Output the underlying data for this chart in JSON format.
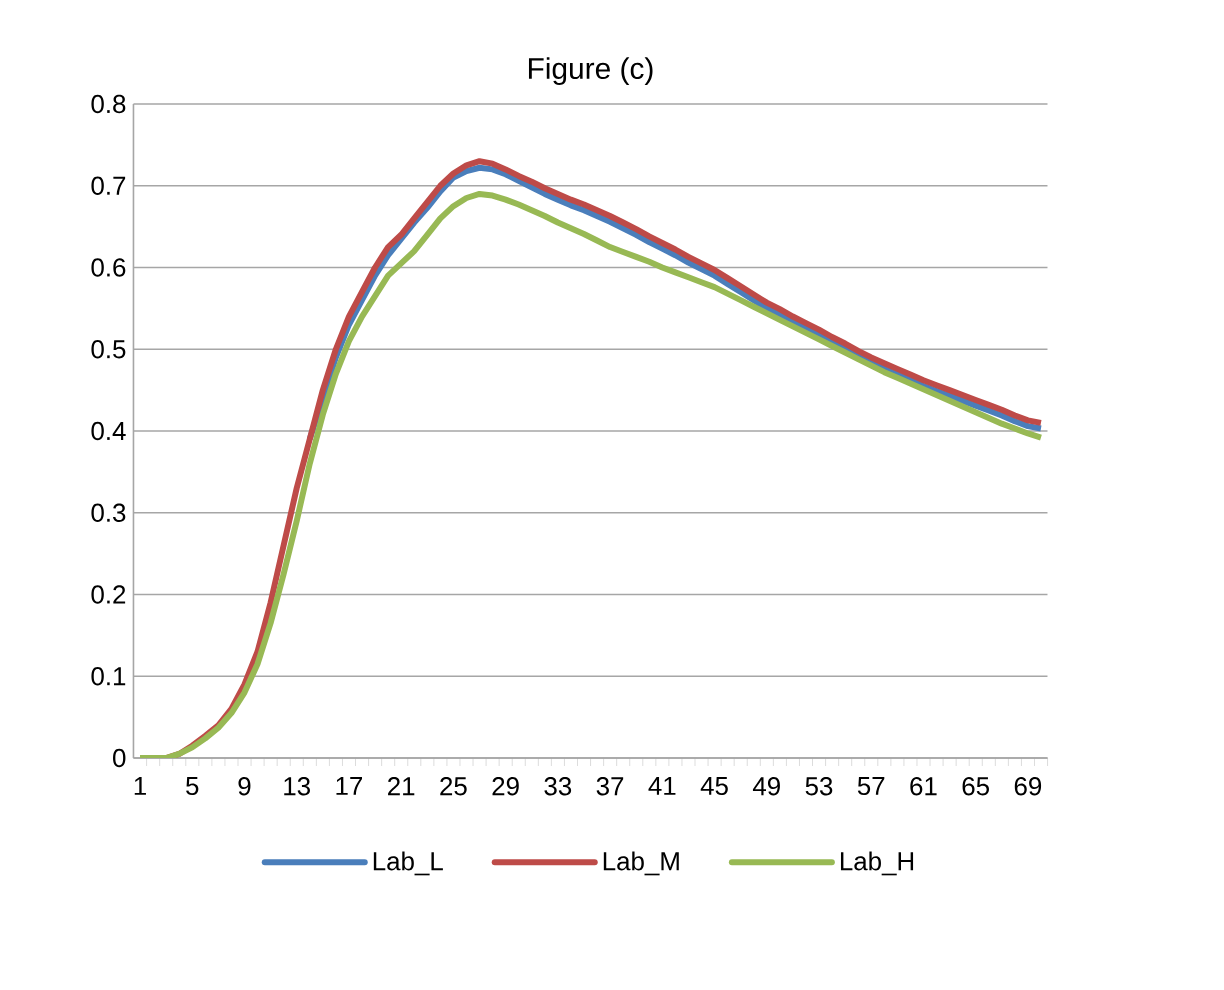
{
  "chart_data": {
    "type": "line",
    "title": "Figure (c)",
    "categories": [
      "1",
      null,
      null,
      null,
      "5",
      null,
      null,
      null,
      "9",
      null,
      null,
      null,
      "13",
      null,
      null,
      null,
      "17",
      null,
      null,
      null,
      "21",
      null,
      null,
      null,
      "25",
      null,
      null,
      null,
      "29",
      null,
      null,
      null,
      "33",
      null,
      null,
      null,
      "37",
      null,
      null,
      null,
      "41",
      null,
      null,
      null,
      "45",
      null,
      null,
      null,
      "49",
      null,
      null,
      null,
      "53",
      null,
      null,
      null,
      "57",
      null,
      null,
      null,
      "61",
      null,
      null,
      null,
      "65",
      null,
      null,
      null,
      "69",
      null
    ],
    "series": [
      {
        "name": "Lab_L",
        "color": "#4a7ebb",
        "values": [
          null,
          null,
          null,
          null,
          null,
          null,
          null,
          null,
          null,
          null,
          null,
          null,
          null,
          0.39,
          0.44,
          0.49,
          0.53,
          0.56,
          0.59,
          0.615,
          0.635,
          0.655,
          0.673,
          0.693,
          0.71,
          0.718,
          0.722,
          0.72,
          0.714,
          0.706,
          0.698,
          0.69,
          0.683,
          0.676,
          0.67,
          0.663,
          0.656,
          0.648,
          0.64,
          0.631,
          0.623,
          0.615,
          0.606,
          0.598,
          0.59,
          0.58,
          0.57,
          0.56,
          0.55,
          0.542,
          0.533,
          0.525,
          0.517,
          0.508,
          0.5,
          0.491,
          0.483,
          0.476,
          0.469,
          0.462,
          0.455,
          0.449,
          0.443,
          0.437,
          0.431,
          0.425,
          0.419,
          0.412,
          0.406,
          0.403
        ]
      },
      {
        "name": "Lab_M",
        "color": "#be4b48",
        "values": [
          null,
          null,
          0,
          0.005,
          0.015,
          0.027,
          0.04,
          0.06,
          0.09,
          0.13,
          0.19,
          0.26,
          0.33,
          0.39,
          0.45,
          0.5,
          0.54,
          0.57,
          0.6,
          0.625,
          0.64,
          0.66,
          0.68,
          0.7,
          0.715,
          0.725,
          0.73,
          0.727,
          0.72,
          0.712,
          0.705,
          0.697,
          0.69,
          0.683,
          0.677,
          0.67,
          0.663,
          0.655,
          0.647,
          0.638,
          0.63,
          0.622,
          0.613,
          0.605,
          0.597,
          0.587,
          0.577,
          0.567,
          0.557,
          0.549,
          0.54,
          0.532,
          0.524,
          0.515,
          0.507,
          0.498,
          0.49,
          0.483,
          0.476,
          0.469,
          0.462,
          0.456,
          0.45,
          0.444,
          0.438,
          0.432,
          0.426,
          0.419,
          0.413,
          0.41
        ]
      },
      {
        "name": "Lab_H",
        "color": "#98b954",
        "values": [
          0,
          0,
          0,
          0.005,
          0.013,
          0.024,
          0.037,
          0.055,
          0.08,
          0.115,
          0.165,
          0.225,
          0.29,
          0.36,
          0.42,
          0.47,
          0.51,
          0.54,
          0.565,
          0.59,
          0.605,
          0.62,
          0.64,
          0.66,
          0.675,
          0.685,
          0.69,
          0.688,
          0.683,
          0.677,
          0.67,
          0.663,
          0.655,
          0.648,
          0.641,
          0.633,
          0.625,
          0.619,
          0.613,
          0.607,
          0.6,
          0.594,
          0.588,
          0.582,
          0.576,
          0.568,
          0.56,
          0.552,
          0.544,
          0.536,
          0.528,
          0.52,
          0.512,
          0.504,
          0.496,
          0.488,
          0.48,
          0.472,
          0.465,
          0.458,
          0.451,
          0.444,
          0.437,
          0.43,
          0.423,
          0.416,
          0.409,
          0.403,
          0.397,
          0.392
        ]
      }
    ],
    "ylim": [
      0,
      0.8
    ],
    "yticks": [
      0,
      0.1,
      0.2,
      0.3,
      0.4,
      0.5,
      0.6,
      0.7,
      0.8
    ],
    "grid": "y",
    "legend": "bottom",
    "marker": "none",
    "line_style": "solid"
  }
}
